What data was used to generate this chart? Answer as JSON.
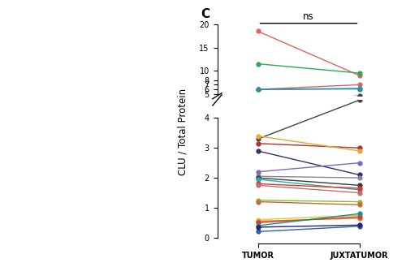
{
  "pairs": [
    {
      "tumor": 18.5,
      "juxta": 9.0,
      "color": "#e8605a"
    },
    {
      "tumor": 11.5,
      "juxta": 9.5,
      "color": "#2aaa50"
    },
    {
      "tumor": 6.0,
      "juxta": 6.1,
      "color": "#3a7ab5"
    },
    {
      "tumor": 6.0,
      "juxta": 7.0,
      "color": "#d4695a"
    },
    {
      "tumor": 6.0,
      "juxta": 6.2,
      "color": "#2196a8"
    },
    {
      "tumor": 3.3,
      "juxta": 4.6,
      "color": "#444444"
    },
    {
      "tumor": 3.15,
      "juxta": 3.0,
      "color": "#b03030"
    },
    {
      "tumor": 2.9,
      "juxta": 2.1,
      "color": "#303070"
    },
    {
      "tumor": 3.4,
      "juxta": 2.9,
      "color": "#e8a830"
    },
    {
      "tumor": 2.2,
      "juxta": 2.5,
      "color": "#7a6abd"
    },
    {
      "tumor": 2.05,
      "juxta": 2.0,
      "color": "#888888"
    },
    {
      "tumor": 2.0,
      "juxta": 1.75,
      "color": "#3a3a3a"
    },
    {
      "tumor": 1.95,
      "juxta": 1.6,
      "color": "#20b0b0"
    },
    {
      "tumor": 1.8,
      "juxta": 1.65,
      "color": "#e83030"
    },
    {
      "tumor": 1.75,
      "juxta": 1.5,
      "color": "#c07070"
    },
    {
      "tumor": 1.25,
      "juxta": 1.2,
      "color": "#90b830"
    },
    {
      "tumor": 1.2,
      "juxta": 1.1,
      "color": "#c46b3a"
    },
    {
      "tumor": 0.6,
      "juxta": 0.75,
      "color": "#d8d020"
    },
    {
      "tumor": 0.55,
      "juxta": 0.65,
      "color": "#e07820"
    },
    {
      "tumor": 0.5,
      "juxta": 0.7,
      "color": "#d04040"
    },
    {
      "tumor": 0.4,
      "juxta": 0.8,
      "color": "#1a9090"
    },
    {
      "tumor": 0.2,
      "juxta": 0.38,
      "color": "#3060a0"
    },
    {
      "tumor": 0.35,
      "juxta": 0.42,
      "color": "#202080"
    }
  ],
  "xlabel_left": "TUMOR",
  "xlabel_right": "JUXTATUMOR",
  "ylabel": "CLU / Total Protein",
  "ns_label": "ns",
  "background_color": "#ffffff"
}
